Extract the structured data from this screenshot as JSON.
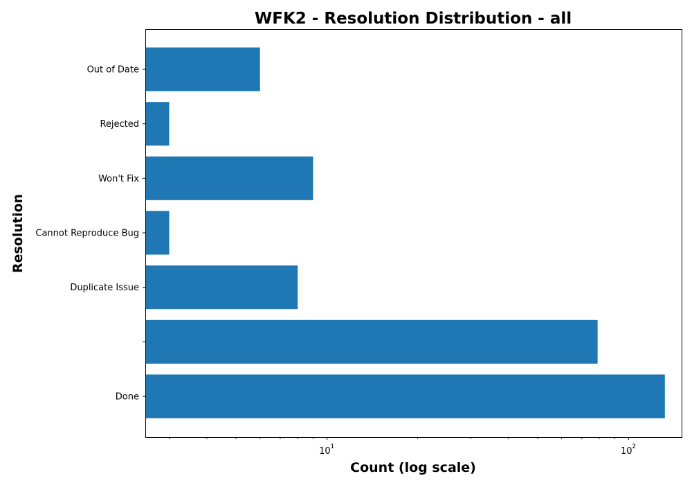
{
  "chart_data": {
    "type": "bar",
    "orientation": "horizontal",
    "title": "WFK2 - Resolution Distribution - all",
    "xlabel": "Count (log scale)",
    "ylabel": "Resolution",
    "x_scale": "log",
    "xlim": [
      2.5,
      150
    ],
    "x_ticks": [
      {
        "value": 10,
        "base": "10",
        "exponent": "1"
      },
      {
        "value": 100,
        "base": "10",
        "exponent": "2"
      }
    ],
    "categories": [
      "Done",
      "",
      "Duplicate Issue",
      "Cannot Reproduce Bug",
      "Won't Fix",
      "Rejected",
      "Out of Date"
    ],
    "values": [
      132,
      79,
      8,
      3,
      9,
      3,
      6
    ],
    "bar_color": "#1f77b4",
    "grid": false
  }
}
